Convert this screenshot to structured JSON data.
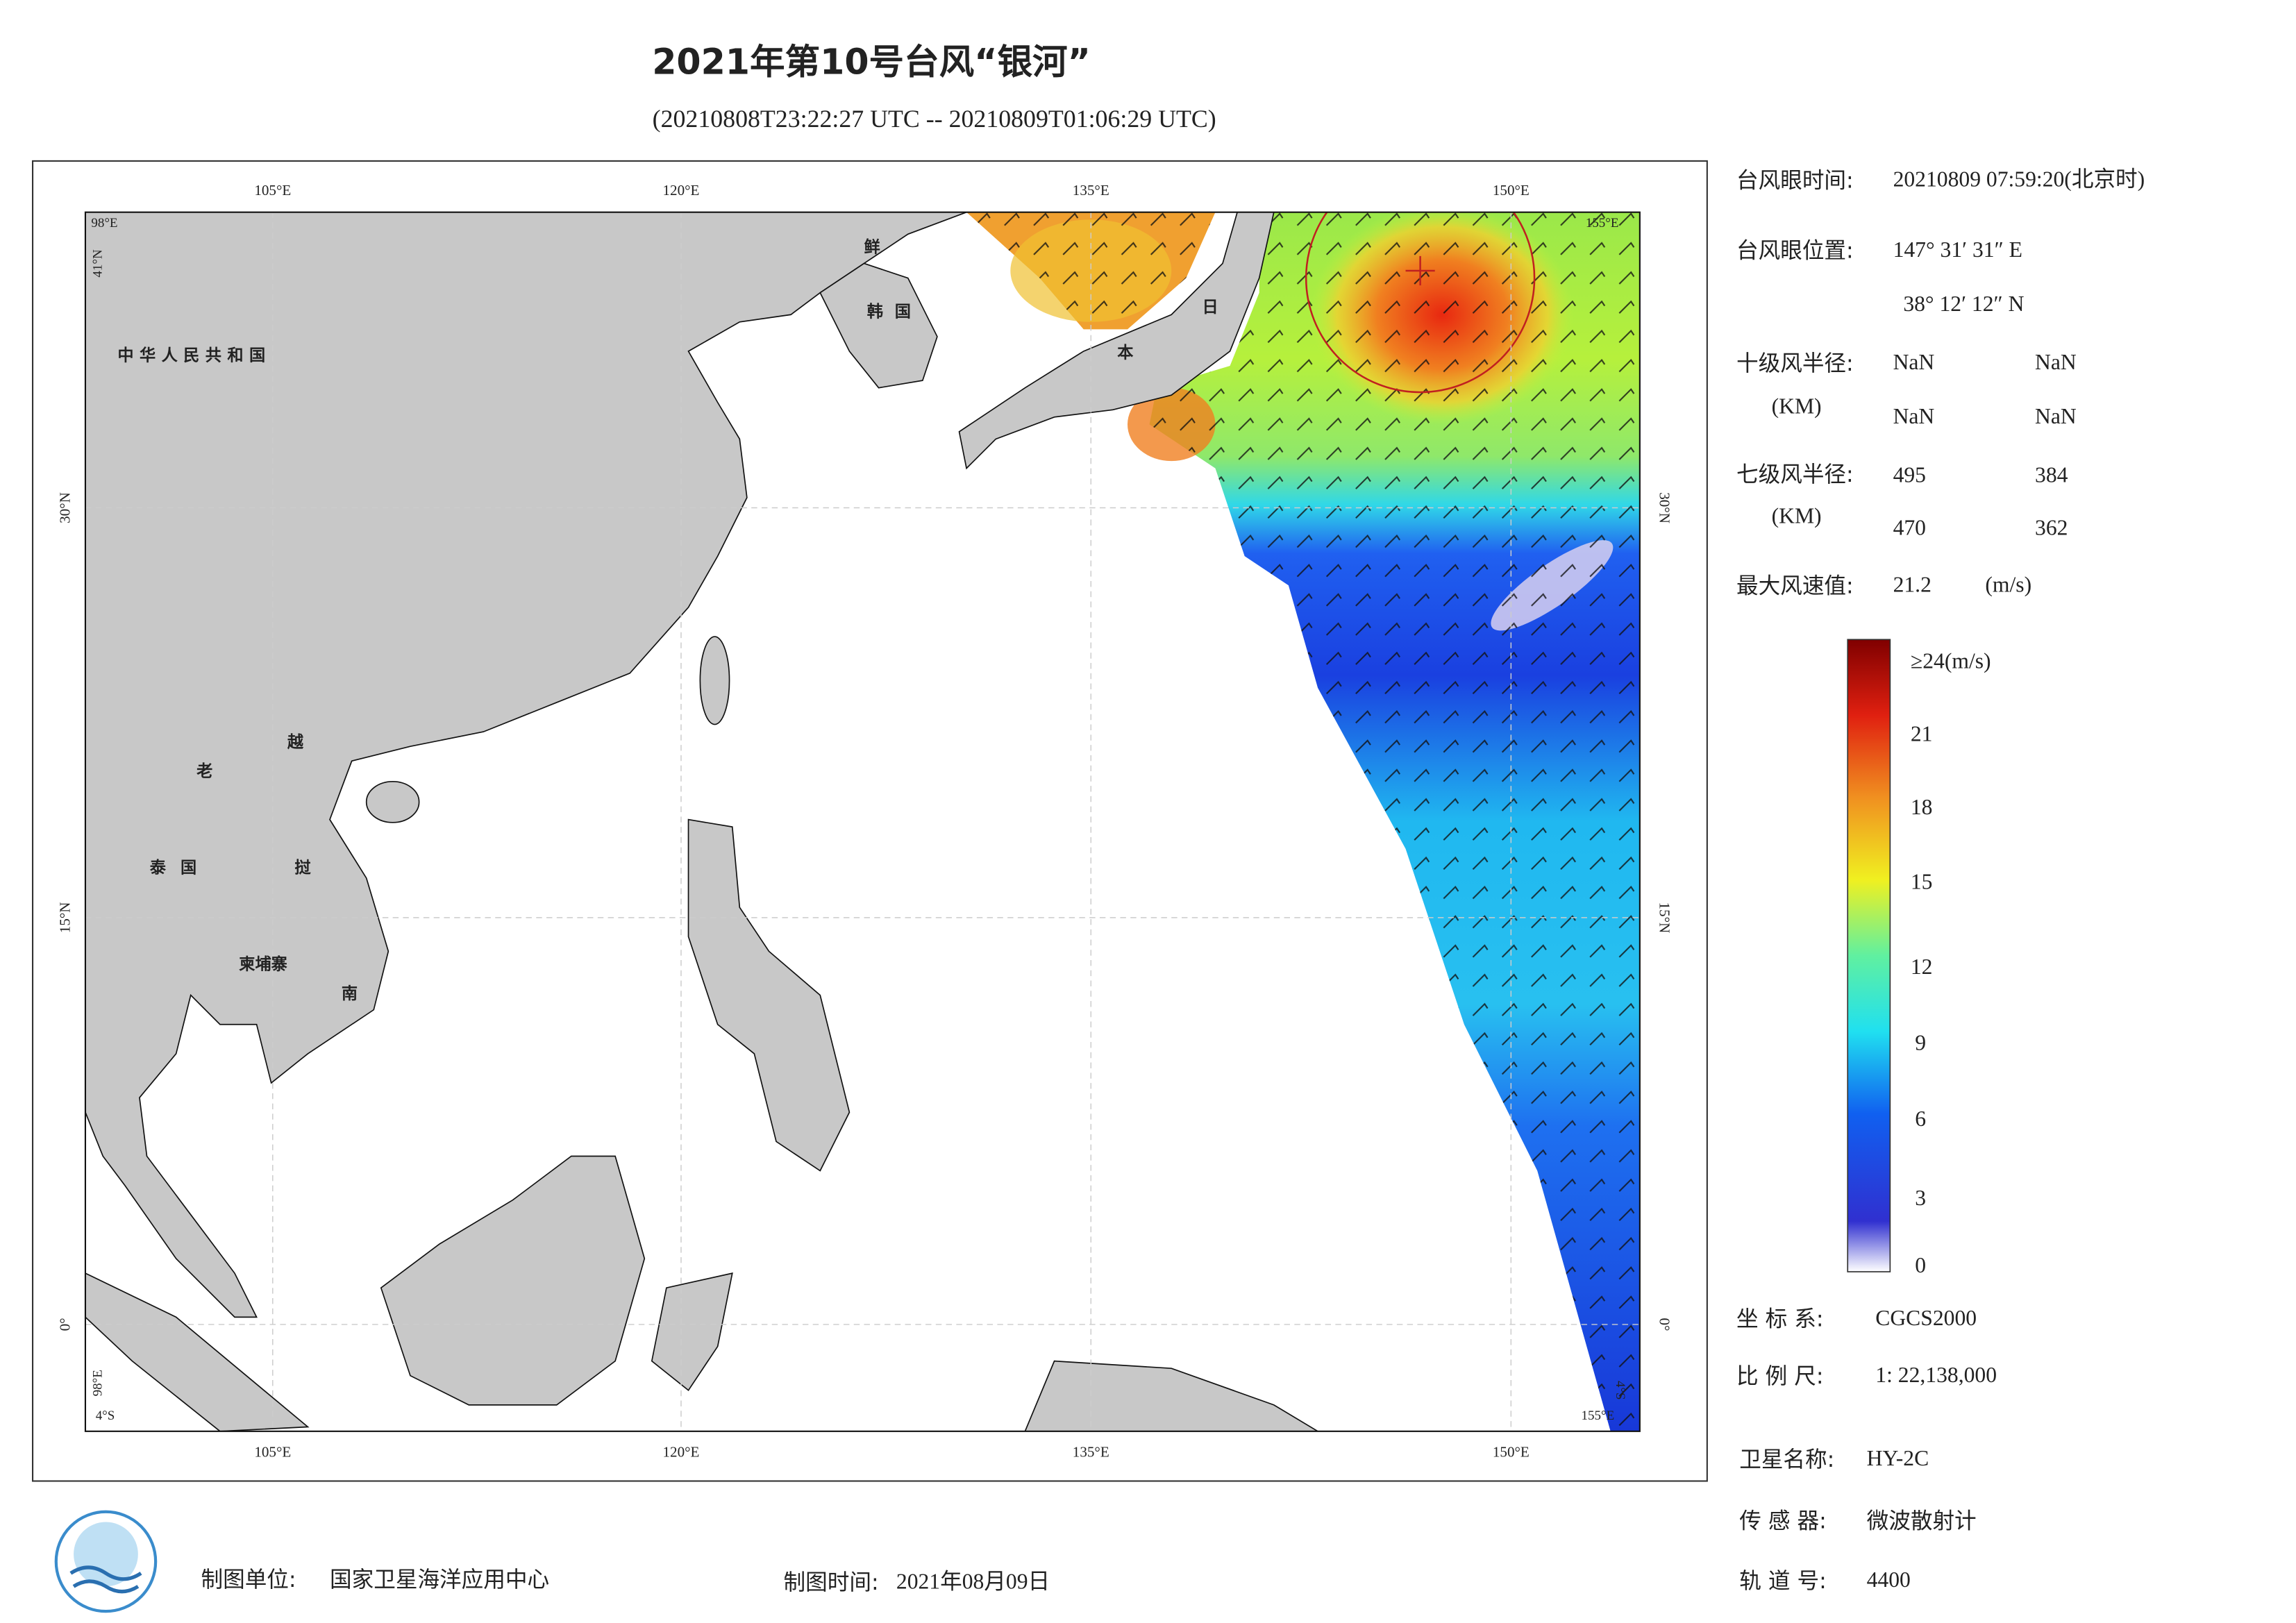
{
  "title": "2021年第10号台风“银河”",
  "subtitle": "(20210808T23:22:27 UTC -- 20210809T01:06:29 UTC)",
  "map": {
    "lon_labels_top": [
      "105°E",
      "120°E",
      "135°E",
      "150°E"
    ],
    "lon_labels_bottom": [
      "105°E",
      "120°E",
      "135°E",
      "150°E"
    ],
    "lat_labels_left": [
      "30°N",
      "15°N",
      "0°"
    ],
    "lat_labels_right": [
      "30°N",
      "15°N",
      "0°"
    ],
    "corner_labels": [
      "98°E",
      "41°N",
      "155°E",
      "98°E",
      "4°S",
      "155°E",
      "4°S"
    ],
    "country_labels": [
      "中华人民共和国",
      "鲜",
      "韩国",
      "日",
      "本",
      "老",
      "越",
      "泰国",
      "挝",
      "柬埔寨",
      "南"
    ]
  },
  "info": {
    "eye_time_label": "台风眼时间:",
    "eye_time": "20210809 07:59:20(北京时)",
    "eye_pos_label": "台风眼位置:",
    "eye_lon": "147° 31′ 31″ E",
    "eye_lat": "38° 12′ 12″ N",
    "r10_label": "十级风半径:",
    "r10_unit": "(KM)",
    "r10": [
      "NaN",
      "NaN",
      "NaN",
      "NaN"
    ],
    "r7_label": "七级风半径:",
    "r7_unit": "(KM)",
    "r7": [
      "495",
      "384",
      "470",
      "362"
    ],
    "max_wind_label": "最大风速值:",
    "max_wind": "21.2",
    "max_wind_unit": "(m/s)"
  },
  "colorbar": {
    "labels": [
      "≥24(m/s)",
      "21",
      "18",
      "15",
      "12",
      "9",
      "6",
      "3",
      "0"
    ]
  },
  "meta": {
    "crs_label": "坐 标 系:",
    "crs": "CGCS2000",
    "scale_label": "比 例 尺:",
    "scale": "1: 22,138,000",
    "satellite_label": "卫星名称:",
    "satellite": "HY-2C",
    "sensor_label": "传 感 器:",
    "sensor": "微波散射计",
    "orbit_label": "轨 道 号:",
    "orbit": "4400"
  },
  "footer": {
    "unit_label": "制图单位:",
    "unit": "国家卫星海洋应用中心",
    "time_label": "制图时间:",
    "time": "2021年08月09日"
  }
}
